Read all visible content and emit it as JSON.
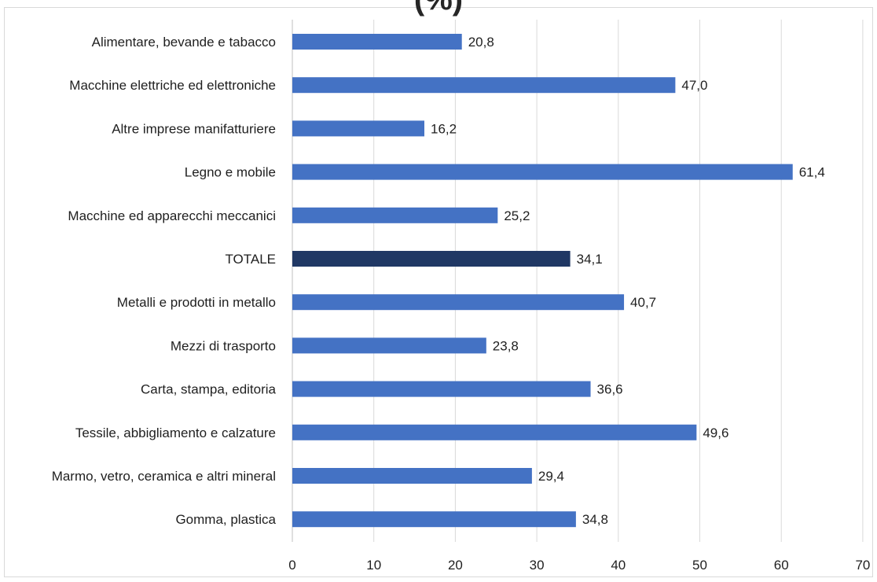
{
  "chart_data": {
    "type": "bar",
    "orientation": "horizontal",
    "title": "(%)",
    "categories": [
      "Alimentare, bevande e tabacco",
      "Macchine elettriche ed elettroniche",
      "Altre imprese manifatturiere",
      "Legno e mobile",
      "Macchine ed apparecchi meccanici",
      "TOTALE",
      "Metalli e prodotti in metallo",
      "Mezzi di trasporto",
      "Carta, stampa, editoria",
      "Tessile, abbigliamento e calzature",
      "Marmo, vetro, ceramica e altri mineral",
      "Gomma, plastica"
    ],
    "values": [
      20.8,
      47.0,
      16.2,
      61.4,
      25.2,
      34.1,
      40.7,
      23.8,
      36.6,
      49.6,
      29.4,
      34.8
    ],
    "value_labels": [
      "20,8",
      "47,0",
      "16,2",
      "61,4",
      "25,2",
      "34,1",
      "40,7",
      "23,8",
      "36,6",
      "49,6",
      "29,4",
      "34,8"
    ],
    "xlim": [
      0,
      70
    ],
    "x_ticks": [
      0,
      10,
      20,
      30,
      40,
      50,
      60,
      70
    ],
    "grid": "vertical",
    "legend": "none",
    "colors": {
      "bar": "#4472C4",
      "highlight": "#203864",
      "grid": "#D9D9D9"
    },
    "highlight_category": "TOTALE"
  }
}
